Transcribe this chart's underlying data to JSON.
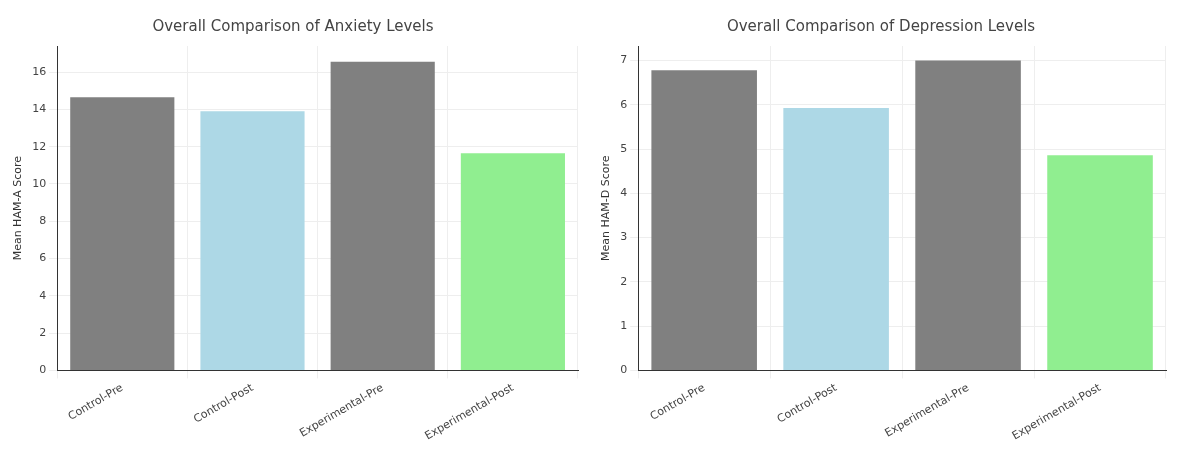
{
  "chart_data": [
    {
      "type": "bar",
      "title": "Overall Comparison of Anxiety Levels",
      "ylabel": "Mean HAM-A Score",
      "categories": [
        "Control-Pre",
        "Control-Post",
        "Experimental-Pre",
        "Experimental-Post"
      ],
      "values": [
        14.65,
        13.9,
        16.55,
        11.65
      ],
      "colors": [
        "#808080",
        "#add8e6",
        "#808080",
        "#90ee90"
      ],
      "ylim": [
        0,
        17.4
      ],
      "yticks": [
        0,
        2,
        4,
        6,
        8,
        10,
        12,
        14,
        16
      ],
      "grid": true
    },
    {
      "type": "bar",
      "title": "Overall Comparison of Depression Levels",
      "ylabel": "Mean HAM-D Score",
      "categories": [
        "Control-Pre",
        "Control-Post",
        "Experimental-Pre",
        "Experimental-Post"
      ],
      "values": [
        6.78,
        5.93,
        7.0,
        4.86
      ],
      "colors": [
        "#808080",
        "#add8e6",
        "#808080",
        "#90ee90"
      ],
      "ylim": [
        0,
        7.33
      ],
      "yticks": [
        0,
        1,
        2,
        3,
        4,
        5,
        6,
        7
      ],
      "grid": true
    }
  ]
}
